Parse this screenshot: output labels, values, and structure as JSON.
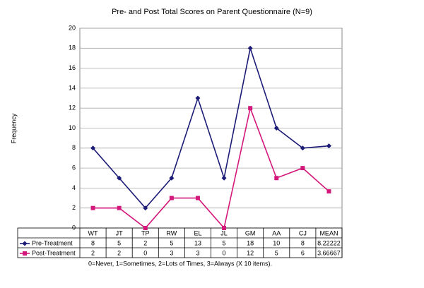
{
  "chart_data": {
    "type": "line",
    "title": "Pre- and Post Total Scores on Parent Questionnaire (N=9)",
    "ylabel": "Frequency",
    "note": "0=Never, 1=Sometimes, 2=Lots of Times, 3=Always (X 10 items).",
    "categories": [
      "WT",
      "JT",
      "TP",
      "RW",
      "EL",
      "JL",
      "GM",
      "AA",
      "CJ",
      "MEAN"
    ],
    "series": [
      {
        "name": "Pre-Treatment",
        "color": "#1c1c78",
        "marker": "diamond",
        "values": [
          8,
          5,
          2,
          5,
          13,
          5,
          18,
          10,
          8,
          8.22222
        ]
      },
      {
        "name": "Post-Treatment",
        "color": "#d4177a",
        "marker": "square",
        "values": [
          2,
          2,
          0,
          3,
          3,
          0,
          12,
          5,
          6,
          3.66667
        ]
      }
    ],
    "ylim": [
      0,
      20
    ],
    "yticks": [
      0,
      2,
      4,
      6,
      8,
      10,
      12,
      14,
      16,
      18,
      20
    ],
    "grid": true
  }
}
